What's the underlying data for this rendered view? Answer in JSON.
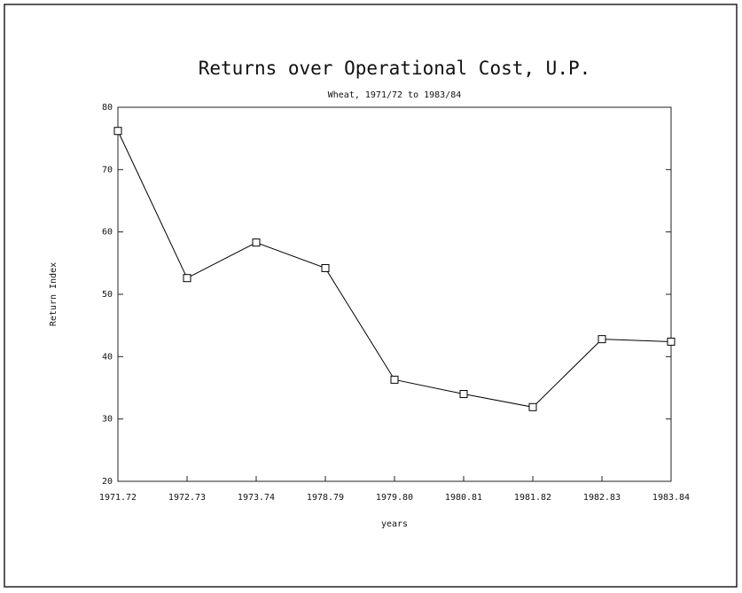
{
  "chart_data": {
    "type": "line",
    "title": "Returns over Operational Cost, U.P.",
    "subtitle": "Wheat, 1971/72 to 1983/84",
    "x_label": "years",
    "y_label": "Return Index",
    "categories": [
      "1971.72",
      "1972.73",
      "1973.74",
      "1978.79",
      "1979.80",
      "1980.81",
      "1981.82",
      "1982.83",
      "1983.84"
    ],
    "series": [
      {
        "name": "Return Index",
        "color": "#000000",
        "values": [
          76.2,
          52.6,
          58.3,
          54.2,
          36.3,
          34.0,
          31.9,
          42.8,
          42.4
        ]
      }
    ],
    "ylim": [
      20,
      80
    ],
    "yticks": [
      20,
      30,
      40,
      50,
      60,
      70,
      80
    ],
    "grid": false
  }
}
